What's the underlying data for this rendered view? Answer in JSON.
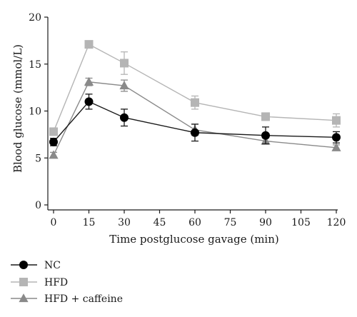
{
  "chart_data": {
    "type": "line",
    "title": "",
    "xlabel": "Time postglucose gavage (min)",
    "ylabel": "Blood glucose (mmol/L)",
    "xlim": [
      0,
      120
    ],
    "ylim": [
      0,
      20
    ],
    "xticks": [
      "0",
      "15",
      "30",
      "45",
      "60",
      "75",
      "90",
      "105",
      "120"
    ],
    "yticks": [
      "0",
      "5",
      "10",
      "15",
      "20"
    ],
    "grid": false,
    "legend_position": "bottom-left",
    "x": [
      0,
      15,
      30,
      60,
      90,
      120
    ],
    "series": [
      {
        "name": "NC",
        "marker": "circle",
        "color": "#000000",
        "line_color": "#1a1a1a",
        "values": [
          6.7,
          11.0,
          9.3,
          7.7,
          7.4,
          7.2
        ],
        "errors": [
          0.4,
          0.8,
          0.9,
          0.9,
          0.9,
          0.6
        ]
      },
      {
        "name": "HFD",
        "marker": "square",
        "color": "#b5b5b5",
        "line_color": "#b5b5b5",
        "values": [
          7.8,
          17.1,
          15.1,
          10.9,
          9.4,
          9.0
        ],
        "errors": [
          0.4,
          0.3,
          1.2,
          0.7,
          0.4,
          0.7
        ]
      },
      {
        "name": "HFD + caffeine",
        "marker": "triangle",
        "color": "#8a8a8a",
        "line_color": "#8a8a8a",
        "values": [
          5.3,
          13.1,
          12.7,
          8.0,
          6.8,
          6.1
        ],
        "errors": [
          0.3,
          0.4,
          0.6,
          0.6,
          0.3,
          0.3
        ]
      }
    ]
  }
}
